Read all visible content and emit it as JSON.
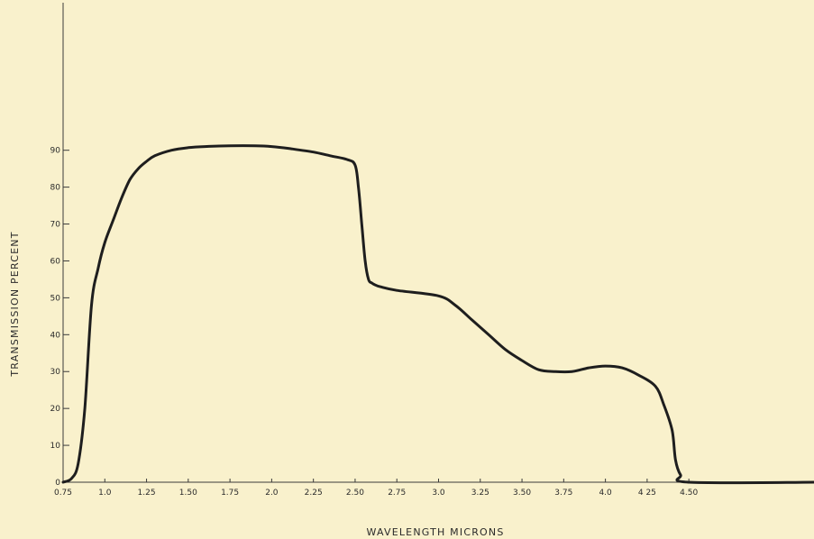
{
  "chart_data": {
    "type": "line",
    "title": "",
    "xlabel": "WAVELENGTH MICRONS",
    "ylabel": "TRANSMISSION PERCENT",
    "x_ticks": [
      "0.75",
      "1.0",
      "1.25",
      "1.50",
      "1.75",
      "2.0",
      "2.25",
      "2.50",
      "2.75",
      "3.0",
      "3.25",
      "3.50",
      "3.75",
      "4.0",
      "4 25",
      "4.50"
    ],
    "x_tick_values": [
      0.75,
      1.0,
      1.25,
      1.5,
      1.75,
      2.0,
      2.25,
      2.5,
      2.75,
      3.0,
      3.25,
      3.5,
      3.75,
      4.0,
      4.25,
      4.5
    ],
    "y_ticks": [
      "0",
      "10",
      "20",
      "30",
      "40",
      "50",
      "60",
      "70",
      "80",
      "90"
    ],
    "y_tick_values": [
      0,
      10,
      20,
      30,
      40,
      50,
      60,
      70,
      80,
      90
    ],
    "xlim": [
      0.75,
      5.25
    ],
    "ylim": [
      0,
      130
    ],
    "grid": false,
    "series": [
      {
        "x": [
          0.75,
          0.8,
          0.84,
          0.88,
          0.92,
          0.96,
          1.0,
          1.05,
          1.1,
          1.15,
          1.2,
          1.25,
          1.3,
          1.4,
          1.5,
          1.6,
          1.75,
          1.9,
          2.0,
          2.1,
          2.25,
          2.35,
          2.45,
          2.5,
          2.52,
          2.54,
          2.56,
          2.58,
          2.6,
          2.62,
          2.65,
          2.75,
          3.0,
          3.1,
          3.2,
          3.3,
          3.4,
          3.5,
          3.6,
          3.7,
          3.8,
          3.9,
          4.0,
          4.1,
          4.2,
          4.3,
          4.35,
          4.4,
          4.42,
          4.45,
          4.5,
          5.25
        ],
        "y": [
          0,
          1,
          5,
          20,
          48,
          58,
          65,
          71,
          77,
          82,
          85,
          87,
          88.5,
          90,
          90.7,
          91,
          91.2,
          91.2,
          91,
          90.5,
          89.5,
          88.5,
          87.5,
          86,
          80,
          70,
          60,
          55,
          54,
          53.5,
          53,
          52,
          50.5,
          48,
          44,
          40,
          36,
          33,
          30.5,
          30,
          30,
          31,
          31.5,
          31,
          29,
          26,
          21,
          14,
          6,
          2,
          0,
          0
        ]
      }
    ]
  }
}
